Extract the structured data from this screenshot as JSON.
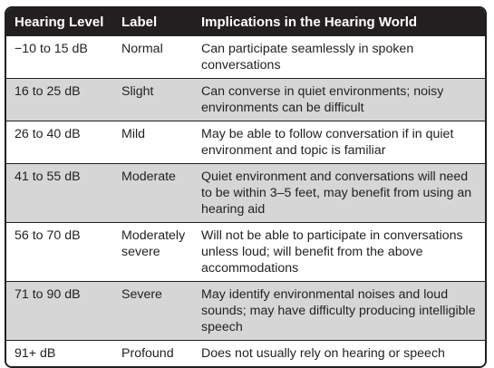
{
  "table": {
    "headers": [
      "Hearing Level",
      "Label",
      "Implications in the Hearing World"
    ],
    "rows": [
      {
        "level": "−10 to 15 dB",
        "label": "Normal",
        "implications": "Can participate seamlessly in spoken conversations"
      },
      {
        "level": "16 to 25 dB",
        "label": "Slight",
        "implications": "Can converse in quiet environments; noisy environments can be difficult"
      },
      {
        "level": "26 to 40 dB",
        "label": "Mild",
        "implications": "May be able to follow conversation if in quiet environment and topic is familiar"
      },
      {
        "level": "41 to 55 dB",
        "label": "Moderate",
        "implications": "Quiet environment and conversations will need to be within 3–5 feet, may benefit from using an hearing aid"
      },
      {
        "level": "56 to 70 dB",
        "label": "Moderately severe",
        "implications": "Will not be able to participate in conversations unless loud; will benefit from the above accommodations"
      },
      {
        "level": "71 to 90 dB",
        "label": "Severe",
        "implications": "May identify environmental noises and loud sounds; may have difficulty producing intelligible speech"
      },
      {
        "level": "91+ dB",
        "label": "Profound",
        "implications": "Does not usually rely on hearing or speech"
      }
    ]
  },
  "colors": {
    "header_bg": "#231f20",
    "header_text": "#ffffff",
    "shaded_row": "#d6d6d6",
    "plain_row": "#ffffff",
    "border": "#231f20"
  }
}
